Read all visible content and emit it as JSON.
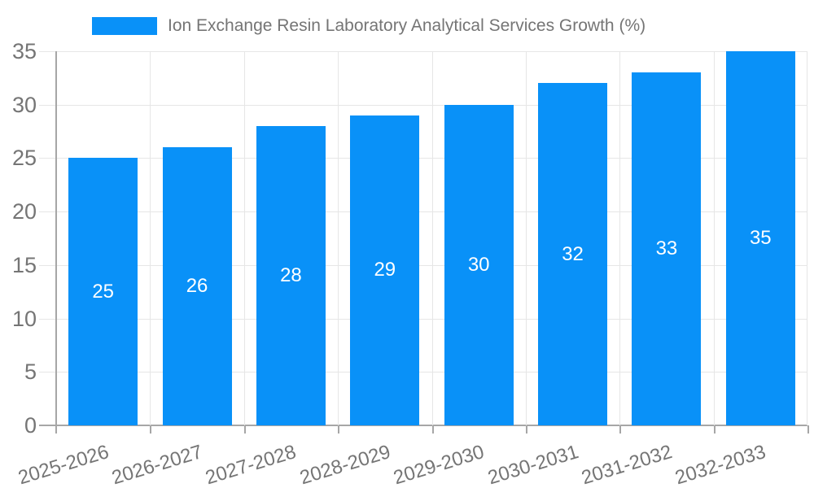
{
  "legend": {
    "label": "Ion Exchange Resin Laboratory Analytical Services Growth (%)"
  },
  "chart_data": {
    "type": "bar",
    "title": "Ion Exchange Resin Laboratory Analytical Services Growth (%)",
    "categories": [
      "2025-2026",
      "2026-2027",
      "2027-2028",
      "2028-2029",
      "2029-2030",
      "2030-2031",
      "2031-2032",
      "2032-2033"
    ],
    "values": [
      25,
      26,
      28,
      29,
      30,
      32,
      33,
      35
    ],
    "series": [
      {
        "name": "Ion Exchange Resin Laboratory Analytical Services Growth (%)",
        "values": [
          25,
          26,
          28,
          29,
          30,
          32,
          33,
          35
        ]
      }
    ],
    "bar_value_labels": [
      "25",
      "26",
      "28",
      "29",
      "30",
      "32",
      "33",
      "35"
    ],
    "xlabel": "",
    "ylabel": "",
    "ylim": [
      0,
      35
    ],
    "yticks": [
      0,
      5,
      10,
      15,
      20,
      25,
      30,
      35
    ],
    "ytick_labels": [
      "0",
      "5",
      "10",
      "15",
      "20",
      "25",
      "30",
      "35"
    ],
    "grid": true,
    "legend_position": "top",
    "x_label_rotation_deg": -17
  },
  "colors": {
    "bar": "#0991f8",
    "bar_label": "#ffffff",
    "grid": "#e6e6e6",
    "axis": "#a6a6a6",
    "tick_label": "#757575",
    "legend_text": "#757575",
    "background": "#ffffff"
  }
}
